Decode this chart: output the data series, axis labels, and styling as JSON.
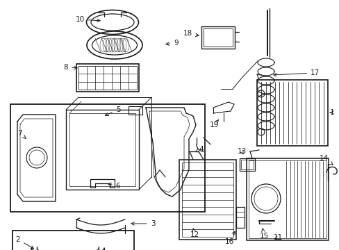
{
  "bg_color": "#ffffff",
  "line_color": "#1a1a1a",
  "label_fontsize": 7.5,
  "figsize": [
    4.89,
    3.6
  ],
  "dpi": 100
}
